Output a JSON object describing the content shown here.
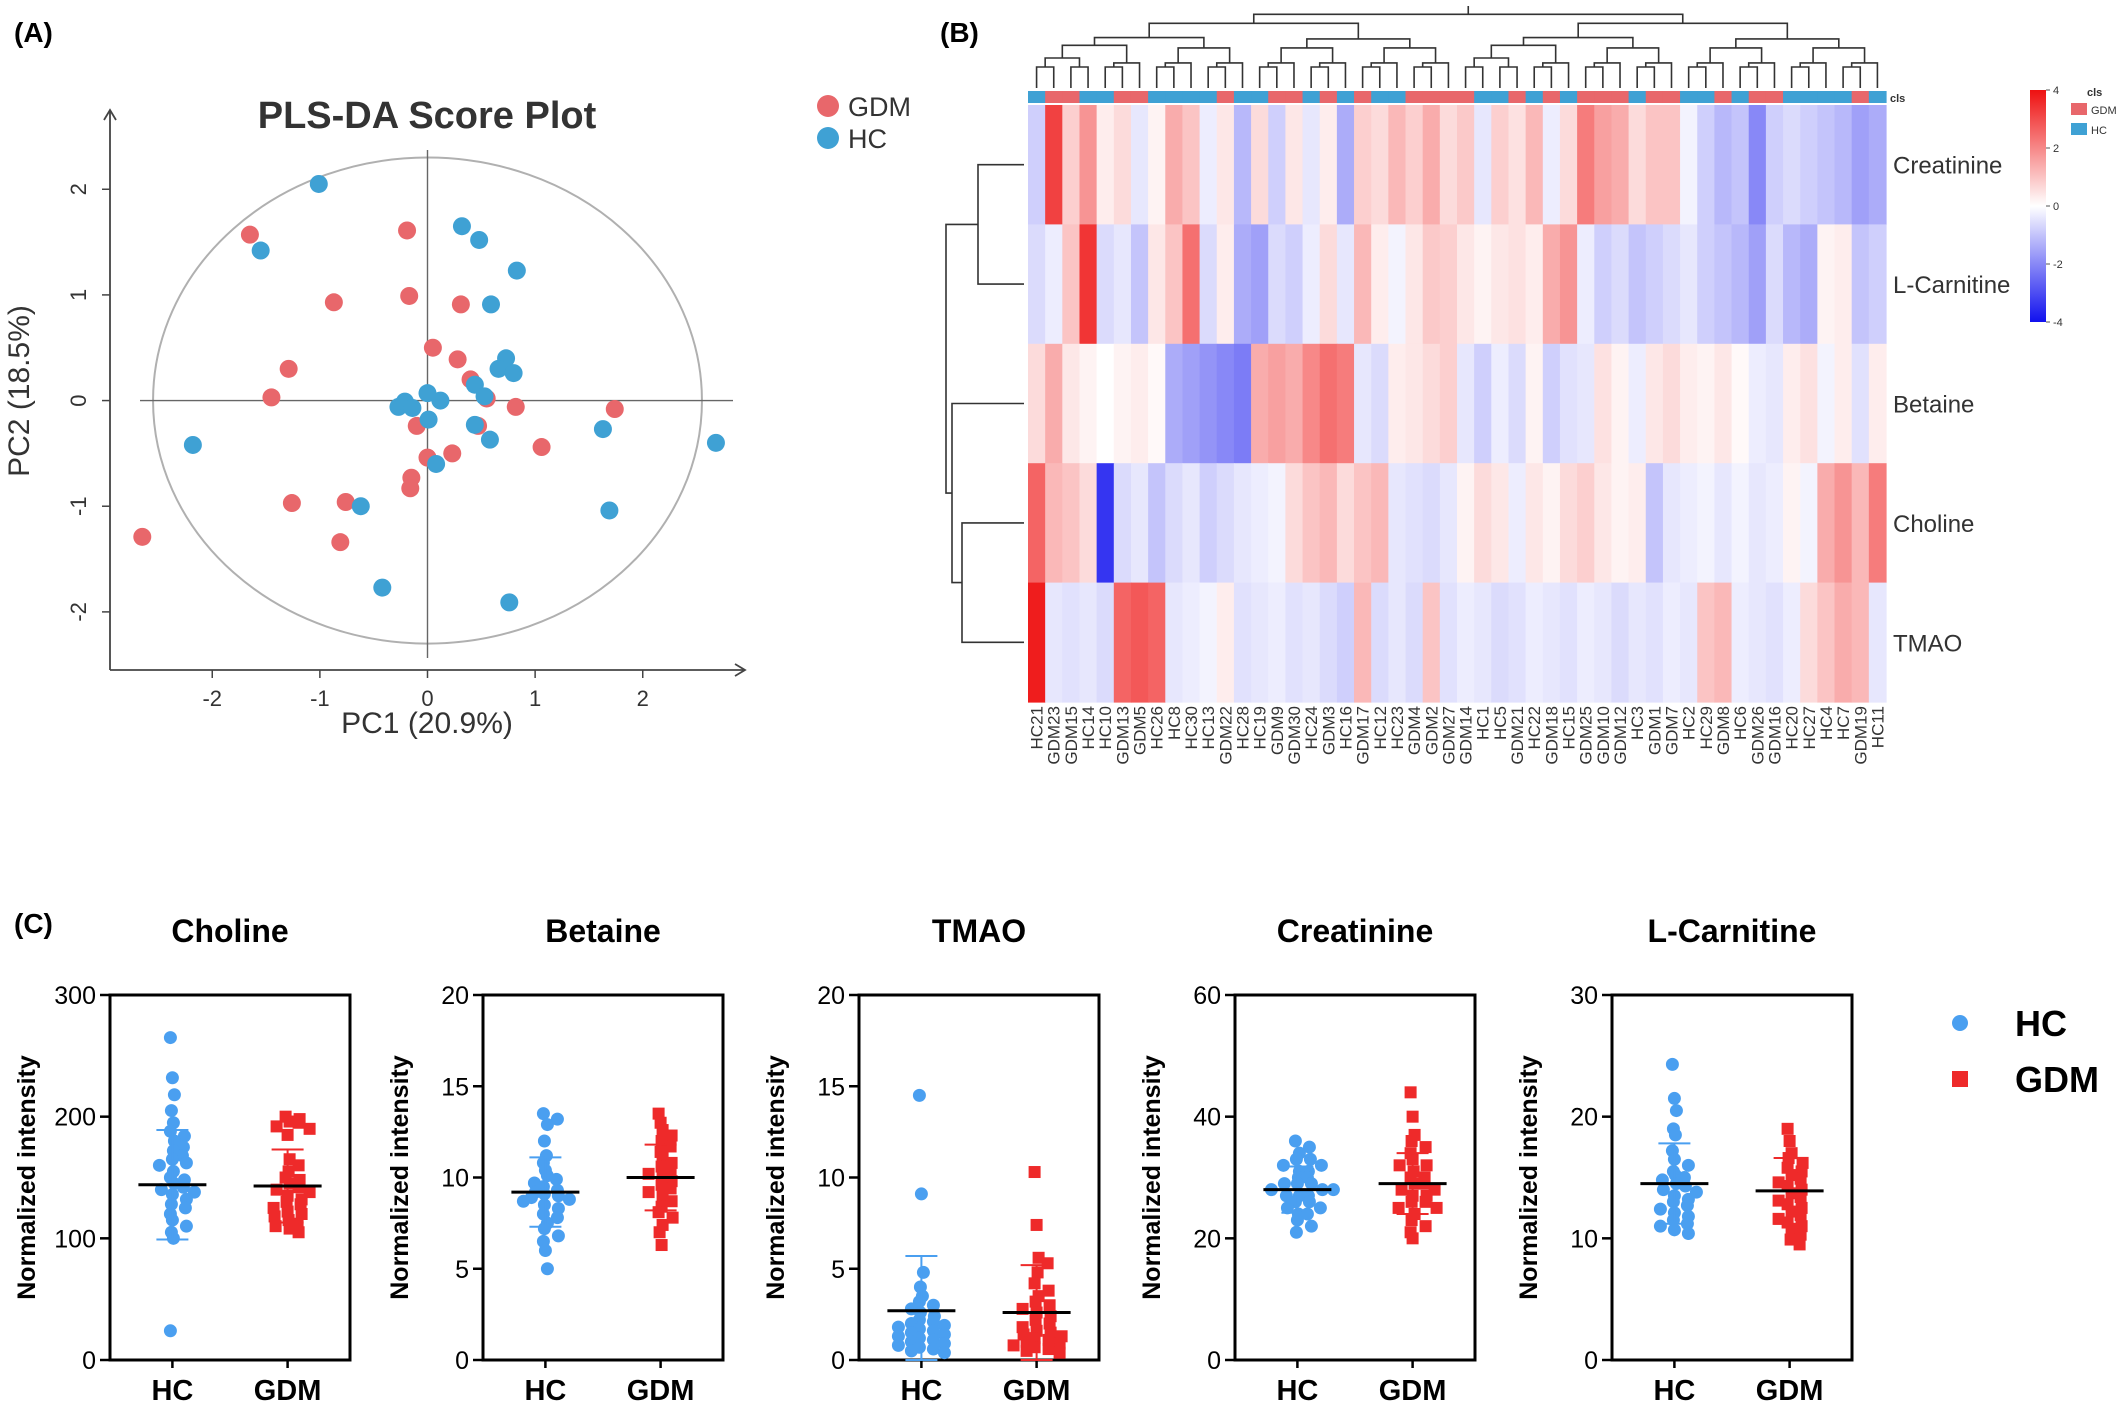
{
  "colors": {
    "gdm_scatter": "#e8676b",
    "hc_scatter": "#3fa1d4",
    "hc_dot": "#4a9ff0",
    "gdm_square": "#ee2a2a",
    "heat_high": "#ee1111",
    "heat_mid": "#ffffff",
    "heat_low": "#1111ee"
  },
  "panel_a": {
    "letter": "(A)",
    "chart_data": {
      "type": "scatter",
      "title": "PLS-DA Score Plot",
      "xlabel": "PC1 (20.9%)",
      "ylabel": "PC2 (18.5%)",
      "xlim": [
        -2.95,
        2.95
      ],
      "ylim": [
        -2.55,
        2.75
      ],
      "xticks": [
        -2,
        -1,
        0,
        1,
        2
      ],
      "yticks": [
        -2,
        -1,
        0,
        1,
        2
      ],
      "xtick_labels": [
        "-2",
        "-1",
        "0",
        "1",
        "2"
      ],
      "ytick_labels": [
        "-2",
        "-1",
        "0",
        "1",
        "2"
      ],
      "ellipse": {
        "rx": 2.55,
        "ry": 2.3
      },
      "legend_position": "top-right",
      "series": [
        {
          "name": "GDM",
          "color": "#e8676b",
          "points": [
            [
              -1.65,
              1.57
            ],
            [
              -0.19,
              1.61
            ],
            [
              -0.87,
              0.93
            ],
            [
              -0.17,
              0.99
            ],
            [
              0.31,
              0.91
            ],
            [
              -1.29,
              0.3
            ],
            [
              -1.45,
              0.03
            ],
            [
              0.05,
              0.5
            ],
            [
              0.28,
              0.39
            ],
            [
              0.4,
              0.2
            ],
            [
              0.55,
              0.02
            ],
            [
              0.82,
              -0.06
            ],
            [
              1.74,
              -0.08
            ],
            [
              -0.1,
              -0.24
            ],
            [
              0.47,
              -0.24
            ],
            [
              1.06,
              -0.44
            ],
            [
              0.0,
              -0.54
            ],
            [
              0.23,
              -0.5
            ],
            [
              -0.15,
              -0.73
            ],
            [
              -0.16,
              -0.83
            ],
            [
              -1.26,
              -0.97
            ],
            [
              -0.76,
              -0.96
            ],
            [
              -2.65,
              -1.29
            ],
            [
              -0.81,
              -1.34
            ]
          ]
        },
        {
          "name": "HC",
          "color": "#3fa1d4",
          "points": [
            [
              -1.01,
              2.05
            ],
            [
              -1.55,
              1.42
            ],
            [
              0.32,
              1.65
            ],
            [
              0.48,
              1.52
            ],
            [
              0.83,
              1.23
            ],
            [
              0.59,
              0.91
            ],
            [
              0.73,
              0.4
            ],
            [
              0.66,
              0.3
            ],
            [
              0.8,
              0.26
            ],
            [
              0.44,
              0.15
            ],
            [
              -0.27,
              -0.06
            ],
            [
              -0.21,
              -0.01
            ],
            [
              -0.14,
              -0.07
            ],
            [
              0.0,
              0.07
            ],
            [
              0.12,
              0.0
            ],
            [
              0.53,
              0.04
            ],
            [
              0.01,
              -0.18
            ],
            [
              0.44,
              -0.23
            ],
            [
              0.58,
              -0.37
            ],
            [
              0.08,
              -0.6
            ],
            [
              -2.18,
              -0.42
            ],
            [
              -0.62,
              -1.0
            ],
            [
              1.63,
              -0.27
            ],
            [
              1.69,
              -1.04
            ],
            [
              2.68,
              -0.4
            ],
            [
              -0.42,
              -1.77
            ],
            [
              0.76,
              -1.91
            ]
          ]
        }
      ]
    }
  },
  "panel_b": {
    "letter": "(B)",
    "chart_data": {
      "type": "heatmap",
      "rows": [
        "Creatinine",
        "L-Carnitine",
        "Betaine",
        "Choline",
        "TMAO"
      ],
      "columns": [
        "HC21",
        "GDM23",
        "GDM15",
        "HC14",
        "HC10",
        "GDM13",
        "GDM5",
        "HC26",
        "HC8",
        "HC30",
        "HC13",
        "GDM22",
        "HC28",
        "HC19",
        "GDM9",
        "GDM30",
        "HC24",
        "GDM3",
        "HC16",
        "GDM17",
        "HC12",
        "HC23",
        "GDM4",
        "GDM2",
        "GDM27",
        "GDM14",
        "HC1",
        "HC5",
        "GDM21",
        "HC22",
        "GDM18",
        "HC15",
        "GDM25",
        "GDM10",
        "GDM12",
        "HC3",
        "GDM1",
        "GDM7",
        "HC2",
        "HC29",
        "GDM8",
        "HC6",
        "GDM26",
        "GDM16",
        "HC20",
        "HC27",
        "HC4",
        "HC7",
        "GDM19",
        "HC11"
      ],
      "column_class": [
        "HC",
        "GDM",
        "GDM",
        "HC",
        "HC",
        "GDM",
        "GDM",
        "HC",
        "HC",
        "HC",
        "HC",
        "GDM",
        "HC",
        "HC",
        "GDM",
        "GDM",
        "HC",
        "GDM",
        "HC",
        "GDM",
        "HC",
        "HC",
        "GDM",
        "GDM",
        "GDM",
        "GDM",
        "HC",
        "HC",
        "GDM",
        "HC",
        "GDM",
        "HC",
        "GDM",
        "GDM",
        "GDM",
        "HC",
        "GDM",
        "GDM",
        "HC",
        "HC",
        "GDM",
        "HC",
        "GDM",
        "GDM",
        "HC",
        "HC",
        "HC",
        "HC",
        "GDM",
        "HC"
      ],
      "values": [
        [
          -0.8,
          3.2,
          0.8,
          1.8,
          0.3,
          0.6,
          -0.4,
          0.2,
          1.4,
          1.0,
          -0.3,
          0.4,
          -1.2,
          0.6,
          -0.8,
          0.4,
          -0.4,
          0.3,
          -1.4,
          0.8,
          0.6,
          1.2,
          0.8,
          1.4,
          0.6,
          0.9,
          -0.4,
          0.8,
          0.5,
          1.2,
          -0.3,
          0.6,
          2.2,
          1.6,
          1.4,
          0.6,
          1.0,
          1.0,
          -0.2,
          -0.8,
          -1.2,
          -1.0,
          -2.0,
          -0.8,
          -0.6,
          -0.8,
          -1.0,
          -1.2,
          -1.6,
          -1.4
        ],
        [
          -0.6,
          -0.3,
          1.0,
          3.4,
          -0.6,
          -0.4,
          -1.0,
          0.4,
          1.0,
          2.4,
          -0.6,
          0.3,
          -1.4,
          -1.6,
          -0.6,
          -0.8,
          -0.3,
          0.6,
          -0.4,
          1.2,
          0.3,
          -0.2,
          0.4,
          0.9,
          0.8,
          0.4,
          0.2,
          0.4,
          0.5,
          0.3,
          1.4,
          1.8,
          -0.3,
          -0.8,
          -0.6,
          -1.0,
          -0.8,
          -0.6,
          -0.4,
          -0.8,
          -1.0,
          -1.2,
          -1.6,
          -0.6,
          -1.2,
          -1.4,
          0.2,
          0.3,
          -1.0,
          -0.8
        ],
        [
          0.6,
          1.4,
          0.4,
          0.2,
          0.0,
          0.2,
          0.3,
          0.1,
          -1.4,
          -1.6,
          -1.8,
          -2.0,
          -2.2,
          1.4,
          1.6,
          1.4,
          2.0,
          2.4,
          2.2,
          -0.4,
          -0.6,
          0.3,
          0.4,
          0.6,
          0.8,
          -0.4,
          -0.8,
          -0.3,
          -0.6,
          0.2,
          -0.8,
          -0.5,
          -0.4,
          0.5,
          0.2,
          -0.3,
          0.4,
          0.6,
          0.3,
          0.2,
          0.4,
          0.1,
          -0.3,
          -0.4,
          0.3,
          0.5,
          -0.2,
          0.3,
          -0.5,
          0.3
        ],
        [
          2.6,
          1.2,
          1.0,
          0.6,
          -3.4,
          -0.6,
          -0.4,
          -1.0,
          -0.6,
          -0.4,
          -0.8,
          -0.6,
          -0.4,
          -0.3,
          -0.2,
          0.6,
          1.0,
          1.2,
          0.6,
          1.0,
          1.2,
          -0.4,
          -0.5,
          -0.6,
          -0.4,
          0.2,
          0.6,
          0.4,
          -0.3,
          0.4,
          0.2,
          0.6,
          0.8,
          0.4,
          0.2,
          0.3,
          -1.0,
          -0.4,
          -0.3,
          -0.2,
          -0.4,
          -0.2,
          -0.4,
          -0.3,
          0.2,
          -0.2,
          1.4,
          1.8,
          1.2,
          2.2
        ],
        [
          3.8,
          -0.4,
          -0.5,
          -0.4,
          -0.6,
          2.6,
          2.8,
          2.6,
          -0.4,
          -0.3,
          -0.2,
          0.3,
          -0.5,
          -0.4,
          -0.3,
          -0.5,
          -0.4,
          -0.6,
          -0.8,
          1.2,
          -0.6,
          -0.4,
          -0.6,
          1.0,
          -0.5,
          -0.3,
          -0.4,
          -0.6,
          -0.5,
          -0.3,
          -0.4,
          -0.5,
          -0.3,
          -0.4,
          -0.6,
          -0.4,
          -0.5,
          -0.3,
          -0.4,
          1.0,
          1.2,
          -0.3,
          -0.4,
          -0.5,
          -0.3,
          0.6,
          1.0,
          1.4,
          1.2,
          -0.4
        ]
      ],
      "color_scale": {
        "min": -4,
        "max": 4,
        "ticks": [
          4,
          2,
          0,
          -2,
          -4
        ],
        "tick_labels": [
          "4",
          "2",
          "0",
          "-2",
          "-4"
        ]
      },
      "class_bar_label": "cls",
      "legend_title": "cls",
      "legend_entries": [
        "GDM",
        "HC"
      ],
      "legend_position": "right"
    }
  },
  "panel_c": {
    "letter": "(C)",
    "ylabel": "Normalized intensity",
    "categories": [
      "HC",
      "GDM"
    ],
    "legend_entries": [
      "HC",
      "GDM"
    ],
    "chart_data": [
      {
        "type": "scatter",
        "title": "Choline",
        "ylim": [
          0,
          300
        ],
        "yticks": [
          0,
          100,
          200,
          300
        ],
        "ytick_labels": [
          "0",
          "100",
          "200",
          "300"
        ],
        "HC": {
          "mean": 144,
          "sd": 45,
          "values": [
            265,
            232,
            218,
            205,
            195,
            188,
            184,
            180,
            175,
            172,
            168,
            165,
            162,
            160,
            155,
            150,
            148,
            145,
            142,
            140,
            138,
            136,
            132,
            128,
            125,
            120,
            115,
            110,
            105,
            100,
            24
          ]
        },
        "GDM": {
          "mean": 143,
          "sd": 30,
          "values": [
            200,
            198,
            196,
            195,
            192,
            190,
            185,
            165,
            160,
            155,
            150,
            148,
            145,
            142,
            140,
            138,
            135,
            132,
            130,
            128,
            125,
            122,
            120,
            118,
            115,
            112,
            110,
            108,
            105
          ]
        }
      },
      {
        "type": "scatter",
        "title": "Betaine",
        "ylim": [
          0,
          20
        ],
        "yticks": [
          0,
          5,
          10,
          15,
          20
        ],
        "ytick_labels": [
          "0",
          "5",
          "10",
          "15",
          "20"
        ],
        "HC": {
          "mean": 9.2,
          "sd": 1.9,
          "values": [
            13.5,
            13.2,
            12.9,
            12.0,
            11.2,
            10.8,
            10.4,
            10.1,
            9.9,
            9.7,
            9.5,
            9.3,
            9.2,
            9.1,
            9.0,
            8.9,
            8.8,
            8.7,
            8.5,
            8.3,
            8.0,
            7.8,
            7.5,
            7.2,
            6.8,
            6.5,
            6.0,
            5.0
          ]
        },
        "GDM": {
          "mean": 10.0,
          "sd": 1.8,
          "values": [
            13.5,
            13.0,
            12.6,
            12.3,
            12.0,
            11.7,
            11.4,
            11.1,
            10.8,
            10.6,
            10.4,
            10.2,
            10.0,
            9.8,
            9.6,
            9.4,
            9.2,
            9.0,
            8.7,
            8.4,
            8.1,
            7.8,
            7.4,
            7.0,
            6.3
          ]
        }
      },
      {
        "type": "scatter",
        "title": "TMAO",
        "ylim": [
          0,
          20
        ],
        "yticks": [
          0,
          5,
          10,
          15,
          20
        ],
        "ytick_labels": [
          "0",
          "5",
          "10",
          "15",
          "20"
        ],
        "HC": {
          "mean": 2.7,
          "sd": 3.0,
          "values": [
            14.5,
            9.1,
            4.8,
            4.0,
            3.5,
            3.2,
            3.0,
            2.8,
            2.6,
            2.4,
            2.2,
            2.1,
            2.0,
            1.9,
            1.8,
            1.7,
            1.6,
            1.5,
            1.4,
            1.3,
            1.2,
            1.1,
            1.0,
            0.9,
            0.8,
            0.7,
            0.6,
            0.5,
            0.4
          ]
        },
        "GDM": {
          "mean": 2.6,
          "sd": 2.6,
          "values": [
            10.3,
            7.4,
            5.6,
            5.3,
            4.8,
            4.2,
            3.8,
            3.5,
            3.2,
            3.0,
            2.8,
            2.6,
            2.4,
            2.2,
            2.0,
            1.8,
            1.6,
            1.5,
            1.4,
            1.3,
            1.2,
            1.1,
            1.0,
            0.9,
            0.8,
            0.7,
            0.6,
            0.5,
            0.4
          ]
        }
      },
      {
        "type": "scatter",
        "title": "Creatinine",
        "ylim": [
          0,
          60
        ],
        "yticks": [
          0,
          20,
          40,
          60
        ],
        "ytick_labels": [
          "0",
          "20",
          "40",
          "60"
        ],
        "HC": {
          "mean": 28,
          "sd": 3.8,
          "values": [
            36,
            35,
            34,
            33,
            33,
            32,
            32,
            31,
            31,
            30,
            30,
            29,
            29,
            29,
            28,
            28,
            28,
            27,
            27,
            27,
            26,
            26,
            25,
            25,
            24,
            24,
            23,
            22,
            21
          ]
        },
        "GDM": {
          "mean": 29,
          "sd": 5,
          "values": [
            44,
            40,
            37,
            36,
            35,
            34,
            33,
            32,
            32,
            31,
            30,
            30,
            29,
            29,
            28,
            28,
            27,
            27,
            26,
            26,
            25,
            25,
            24,
            23,
            22,
            21,
            20
          ]
        }
      },
      {
        "type": "scatter",
        "title": "L-Carnitine",
        "ylim": [
          0,
          30
        ],
        "yticks": [
          0,
          10,
          20,
          30
        ],
        "ytick_labels": [
          "0",
          "10",
          "20",
          "30"
        ],
        "HC": {
          "mean": 14.5,
          "sd": 3.3,
          "values": [
            24.3,
            21.5,
            20.5,
            19.0,
            18.5,
            17.2,
            16.5,
            16.0,
            15.5,
            15.2,
            15.0,
            14.8,
            14.5,
            14.3,
            14.0,
            13.8,
            13.5,
            13.2,
            13.0,
            12.7,
            12.4,
            12.1,
            11.8,
            11.5,
            11.2,
            11.0,
            10.7,
            10.4
          ]
        },
        "GDM": {
          "mean": 13.9,
          "sd": 2.7,
          "values": [
            19.0,
            18.0,
            17.0,
            16.6,
            16.2,
            15.8,
            15.5,
            15.2,
            14.9,
            14.6,
            14.3,
            14.0,
            13.7,
            13.4,
            13.1,
            12.8,
            12.5,
            12.2,
            11.9,
            11.6,
            11.3,
            11.0,
            10.7,
            10.3,
            9.9,
            9.5
          ]
        }
      }
    ]
  }
}
